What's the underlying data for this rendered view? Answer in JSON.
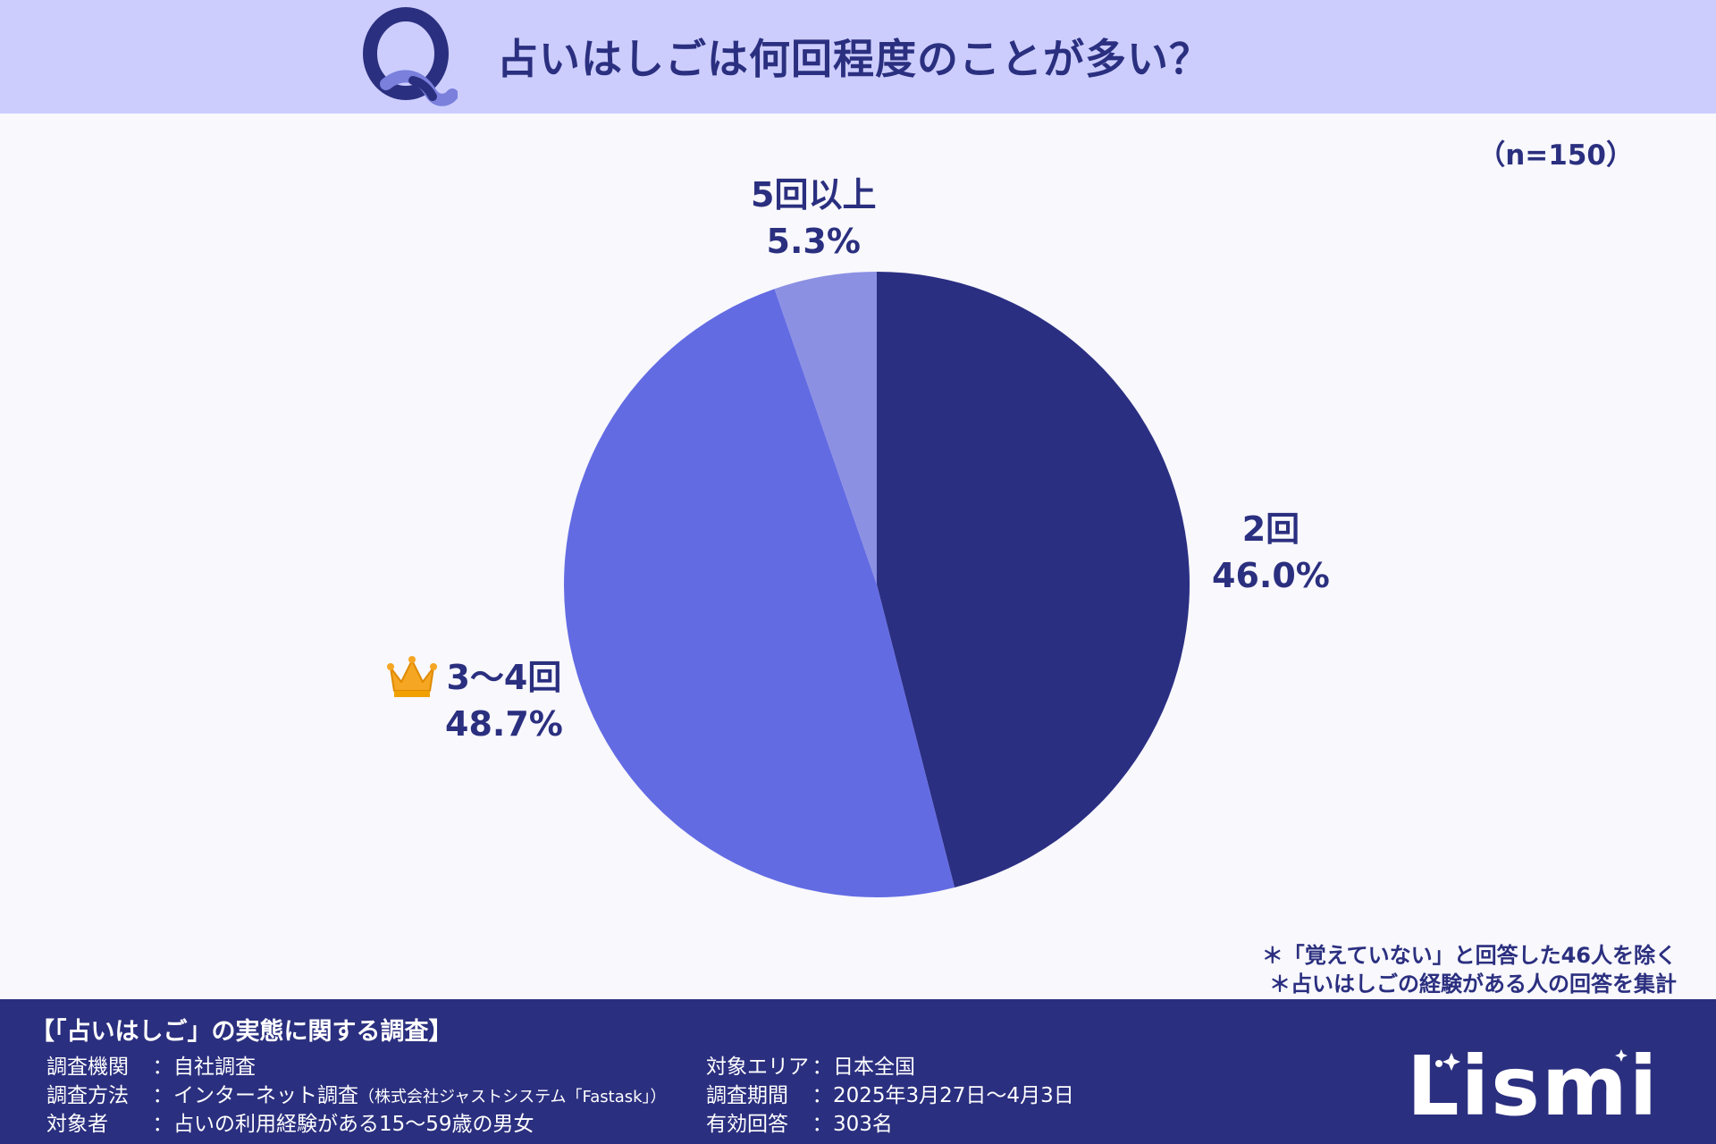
{
  "header": {
    "title": "占いはしごは何回程度のことが多い？",
    "q_icon": "q-letter-icon"
  },
  "sample_size": "（n=150）",
  "chart_data": {
    "type": "pie",
    "title": "占いはしごは何回程度のことが多い？",
    "categories": [
      "2回",
      "3〜4回",
      "5回以上"
    ],
    "values": [
      46.0,
      48.7,
      5.3
    ],
    "value_labels": [
      "46.0%",
      "48.7%",
      "5.3%"
    ],
    "colors": [
      "#2b2f82",
      "#636be3",
      "#8b90e3"
    ],
    "start_angle": "12 o'clock",
    "direction": "clockwise",
    "legend": "none",
    "highlight": {
      "category": "3〜4回",
      "icon": "crown-icon"
    }
  },
  "notes": [
    "＊「覚えていない」と回答した46人を除く",
    "＊占いはしごの経験がある人の回答を集計"
  ],
  "footer": {
    "survey_title": "【「占いはしご」の実態に関する調査】",
    "left": [
      {
        "key": "調査機関",
        "value": "自社調査",
        "extra": ""
      },
      {
        "key": "調査方法",
        "value": "インターネット調査",
        "extra": "（株式会社ジャストシステム「Fastask」）"
      },
      {
        "key": "対象者",
        "value": "占いの利用経験がある15〜59歳の男女",
        "extra": ""
      }
    ],
    "right": [
      {
        "key": "対象エリア",
        "value": "日本全国"
      },
      {
        "key": "調査期間",
        "value": "2025年3月27日〜4月3日"
      },
      {
        "key": "有効回答",
        "value": "303名"
      }
    ],
    "logo": "Lismi"
  },
  "colors": {
    "header_bg": "#cccdfd",
    "page_bg": "#f8f8fd",
    "footer_bg": "#2b2f7f",
    "text": "#2b2f7f",
    "crown": "#f5a623"
  }
}
